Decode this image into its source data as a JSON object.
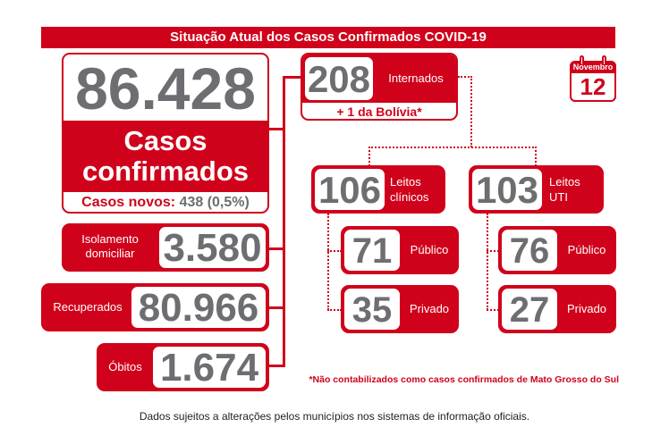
{
  "title": "Situação Atual dos Casos Confirmados COVID-19",
  "calendar": {
    "month": "Novembro",
    "day": "12"
  },
  "confirmed": {
    "value": "86.428",
    "label_line1": "Casos",
    "label_line2": "confirmados",
    "new_label": "Casos novos:",
    "new_value": "438 (0,5%)"
  },
  "isolation": {
    "label_line1": "Isolamento",
    "label_line2": "domiciliar",
    "value": "3.580"
  },
  "recovered": {
    "label": "Recuperados",
    "value": "80.966"
  },
  "deaths": {
    "label": "Óbitos",
    "value": "1.674"
  },
  "hospitalized": {
    "value": "208",
    "label": "Internados",
    "note": "+ 1 da Bolívia*"
  },
  "clinical_beds": {
    "value": "106",
    "label_line1": "Leitos",
    "label_line2": "clínicos",
    "public": {
      "value": "71",
      "label": "Público"
    },
    "private": {
      "value": "35",
      "label": "Privado"
    }
  },
  "icu_beds": {
    "value": "103",
    "label_line1": "Leitos",
    "label_line2": "UTI",
    "public": {
      "value": "76",
      "label": "Público"
    },
    "private": {
      "value": "27",
      "label": "Privado"
    }
  },
  "footnote": "*Não contabilizados como casos confirmados de Mato Grosso do Sul",
  "disclaimer": "Dados sujeitos a alterações pelos municípios nos sistemas de informação oficiais.",
  "colors": {
    "accent": "#d0021b",
    "number_gray": "#6d6e71"
  }
}
